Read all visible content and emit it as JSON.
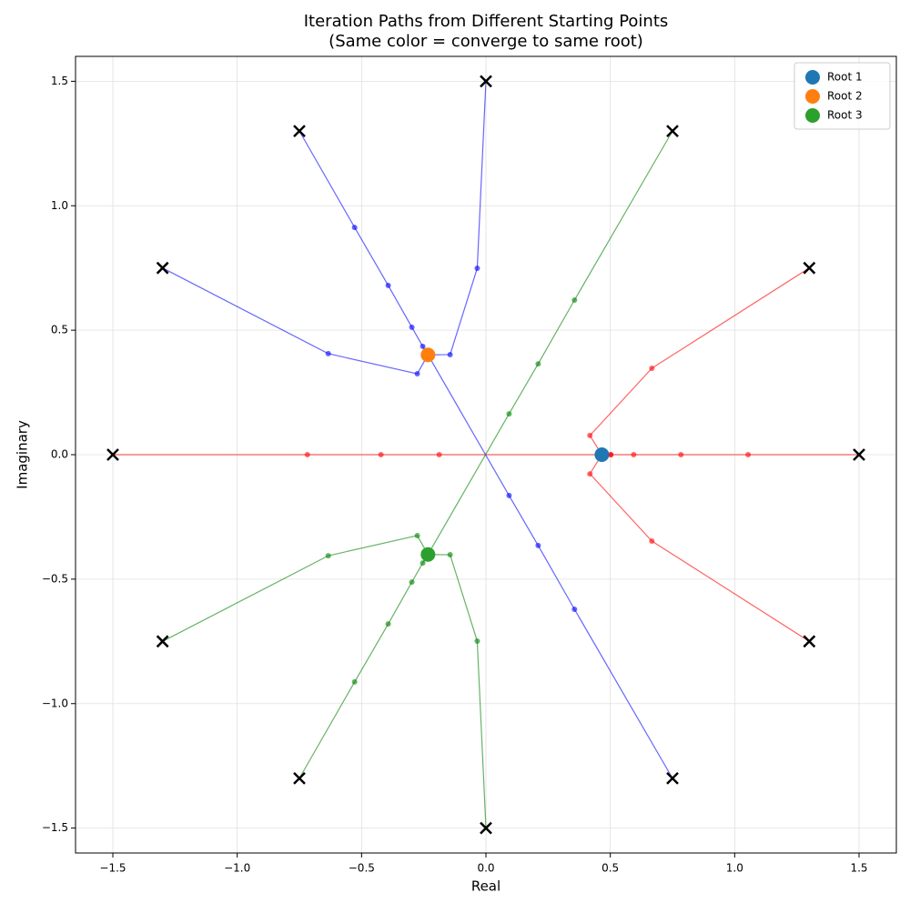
{
  "chart_data": {
    "type": "path-scatter",
    "title": "Iteration Paths from Different Starting Points",
    "subtitle": "(Same color = converge to same root)",
    "x_label": "Real",
    "y_label": "Imaginary",
    "xlim": [
      -1.65,
      1.65
    ],
    "ylim": [
      -1.6,
      1.6
    ],
    "xticks": [
      {
        "value": -1.5,
        "label": "−1.5"
      },
      {
        "value": -1.0,
        "label": "−1.0"
      },
      {
        "value": -0.5,
        "label": "−0.5"
      },
      {
        "value": 0,
        "label": "0.0"
      },
      0.5,
      {
        "value": 1.0,
        "label": "1.0"
      },
      1.5
    ],
    "yticks": [
      {
        "value": -1.5,
        "label": "−1.5"
      },
      {
        "value": -1.0,
        "label": "−1.0"
      },
      {
        "value": -0.5,
        "label": "−0.5"
      },
      {
        "value": 0,
        "label": "0.0"
      },
      0.5,
      {
        "value": 1.0,
        "label": "1.0"
      },
      1.5
    ],
    "grid": true,
    "legend_position": "upper-right",
    "start_marker_color": "#000000",
    "series": [
      {
        "name": "Root 1",
        "color": "#1f77b4",
        "x": [
          0.466
        ],
        "y": [
          0
        ]
      },
      {
        "name": "Root 2",
        "color": "#ff7f0e",
        "x": [
          -0.233
        ],
        "y": [
          0.401
        ]
      },
      {
        "name": "Root 3",
        "color": "#2ca02c",
        "x": [
          -0.233
        ],
        "y": [
          -0.401
        ]
      }
    ],
    "paths": [
      {
        "color": "#ff0000",
        "x": [
          1.5,
          1.054,
          0.784,
          0.594,
          0.502,
          0.466
        ],
        "y": [
          0,
          0,
          0,
          0,
          0,
          0
        ]
      },
      {
        "color": "#ff0000",
        "x": [
          1.3,
          0.667,
          0.418,
          0.466
        ],
        "y": [
          0.75,
          0.347,
          0.077,
          0
        ]
      },
      {
        "color": "#ff0000",
        "x": [
          1.3,
          0.667,
          0.418,
          0.466
        ],
        "y": [
          -0.75,
          -0.347,
          -0.077,
          0
        ]
      },
      {
        "color": "#ff0000",
        "x": [
          -1.5,
          -0.718,
          -0.422,
          -0.188,
          0.502,
          0.466
        ],
        "y": [
          0,
          0,
          0,
          0,
          0,
          0
        ]
      },
      {
        "color": "#0000ff",
        "x": [
          0,
          -0.035,
          -0.144,
          -0.233
        ],
        "y": [
          1.5,
          0.749,
          0.402,
          0.401
        ]
      },
      {
        "color": "#0000ff",
        "x": [
          -0.75,
          -0.528,
          -0.393,
          -0.298,
          -0.254,
          -0.233
        ],
        "y": [
          1.3,
          0.913,
          0.68,
          0.512,
          0.435,
          0.401
        ]
      },
      {
        "color": "#0000ff",
        "x": [
          -1.3,
          -0.634,
          -0.276,
          -0.233
        ],
        "y": [
          0.75,
          0.406,
          0.325,
          0.401
        ]
      },
      {
        "color": "#0000ff",
        "x": [
          0.75,
          0.356,
          0.21,
          0.093,
          -0.233
        ],
        "y": [
          -1.3,
          -0.621,
          -0.365,
          -0.164,
          0.401
        ]
      },
      {
        "color": "#008000",
        "x": [
          0.75,
          0.356,
          0.21,
          0.093,
          -0.233
        ],
        "y": [
          1.3,
          0.621,
          0.365,
          0.164,
          -0.401
        ]
      },
      {
        "color": "#008000",
        "x": [
          0,
          -0.035,
          -0.144,
          -0.233
        ],
        "y": [
          -1.5,
          -0.749,
          -0.402,
          -0.401
        ]
      },
      {
        "color": "#008000",
        "x": [
          -0.75,
          -0.528,
          -0.393,
          -0.298,
          -0.254,
          -0.233
        ],
        "y": [
          -1.3,
          -0.913,
          -0.68,
          -0.512,
          -0.435,
          -0.401
        ]
      },
      {
        "color": "#008000",
        "x": [
          -1.3,
          -0.634,
          -0.276,
          -0.233
        ],
        "y": [
          -0.75,
          -0.406,
          -0.325,
          -0.401
        ]
      }
    ]
  }
}
